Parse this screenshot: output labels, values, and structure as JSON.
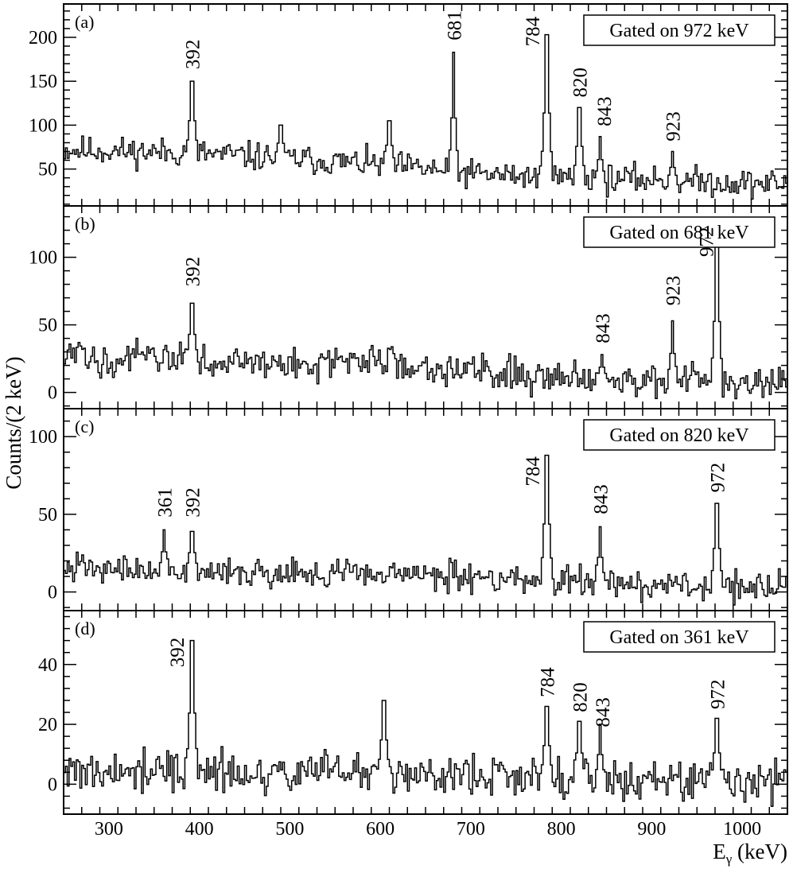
{
  "chart_data": {
    "type": "histogram",
    "ylabel": "Counts/(2 keV)",
    "xlabel": "E",
    "xlabel_sub": "γ",
    "xlabel_unit": " (keV)",
    "xlim": [
      250,
      1050
    ],
    "bin_width": 2,
    "xticks": [
      300,
      400,
      500,
      600,
      700,
      800,
      900,
      1000
    ],
    "xtick_labels": [
      "300",
      "400",
      "500",
      "600",
      "700",
      "800",
      "900",
      "1000"
    ],
    "panels": [
      {
        "tag": "(a)",
        "gate": "Gated on 972 keV",
        "ylim": [
          8,
          238
        ],
        "yticks": [
          50,
          100,
          150,
          200
        ],
        "ytick_labels": [
          "50",
          "100",
          "150",
          "200"
        ],
        "baseline": [
          [
            250,
            72
          ],
          [
            400,
            68
          ],
          [
            500,
            62
          ],
          [
            600,
            55
          ],
          [
            700,
            45
          ],
          [
            800,
            40
          ],
          [
            900,
            38
          ],
          [
            1000,
            34
          ],
          [
            1050,
            33
          ]
        ],
        "noise": 14,
        "peaks": [
          [
            392,
            150
          ],
          [
            490,
            100
          ],
          [
            610,
            105
          ],
          [
            681,
            183
          ],
          [
            784,
            203
          ],
          [
            820,
            120
          ],
          [
            843,
            87
          ],
          [
            923,
            70
          ]
        ],
        "labels": [
          {
            "text": "392",
            "x": 392,
            "y": 160
          },
          {
            "text": "681",
            "x": 681,
            "y": 193
          },
          {
            "text": "784",
            "x": 768,
            "y": 186
          },
          {
            "text": "820",
            "x": 820,
            "y": 128
          },
          {
            "text": "843",
            "x": 847,
            "y": 95
          },
          {
            "text": "923",
            "x": 923,
            "y": 78
          }
        ]
      },
      {
        "tag": "(b)",
        "gate": "Gated on 681 keV",
        "ylim": [
          -12,
          138
        ],
        "yticks": [
          0,
          50,
          100
        ],
        "ytick_labels": [
          "0",
          "50",
          "100"
        ],
        "baseline": [
          [
            250,
            26
          ],
          [
            400,
            24
          ],
          [
            500,
            20
          ],
          [
            600,
            24
          ],
          [
            700,
            16
          ],
          [
            800,
            12
          ],
          [
            900,
            10
          ],
          [
            1000,
            6
          ],
          [
            1050,
            6
          ]
        ],
        "noise": 11,
        "peaks": [
          [
            392,
            66
          ],
          [
            845,
            28
          ],
          [
            923,
            53
          ],
          [
            972,
            108
          ]
        ],
        "labels": [
          {
            "text": "392",
            "x": 392,
            "y": 76
          },
          {
            "text": "843",
            "x": 845,
            "y": 34
          },
          {
            "text": "923",
            "x": 923,
            "y": 62
          },
          {
            "text": "972",
            "x": 960,
            "y": 98
          }
        ]
      },
      {
        "tag": "(c)",
        "gate": "Gated on 820 keV",
        "ylim": [
          -12,
          118
        ],
        "yticks": [
          0,
          50,
          100
        ],
        "ytick_labels": [
          "0",
          "50",
          "100"
        ],
        "baseline": [
          [
            250,
            15
          ],
          [
            400,
            14
          ],
          [
            500,
            12
          ],
          [
            600,
            12
          ],
          [
            700,
            10
          ],
          [
            800,
            7
          ],
          [
            900,
            5
          ],
          [
            1000,
            4
          ],
          [
            1050,
            4
          ]
        ],
        "noise": 8,
        "peaks": [
          [
            361,
            40
          ],
          [
            392,
            39
          ],
          [
            784,
            88
          ],
          [
            843,
            42
          ],
          [
            972,
            57
          ]
        ],
        "labels": [
          {
            "text": "361",
            "x": 361,
            "y": 46
          },
          {
            "text": "392",
            "x": 392,
            "y": 46
          },
          {
            "text": "784",
            "x": 768,
            "y": 66
          },
          {
            "text": "843",
            "x": 843,
            "y": 48
          },
          {
            "text": "972",
            "x": 972,
            "y": 62
          }
        ]
      },
      {
        "tag": "(d)",
        "gate": "Gated on 361 keV",
        "ylim": [
          -10,
          58
        ],
        "yticks": [
          0,
          20,
          40
        ],
        "ytick_labels": [
          "0",
          "20",
          "40"
        ],
        "baseline": [
          [
            250,
            3
          ],
          [
            400,
            4
          ],
          [
            500,
            4
          ],
          [
            600,
            4
          ],
          [
            700,
            3
          ],
          [
            800,
            2
          ],
          [
            900,
            1
          ],
          [
            1000,
            1
          ],
          [
            1050,
            1
          ]
        ],
        "noise": 6,
        "peaks": [
          [
            392,
            48
          ],
          [
            604,
            28
          ],
          [
            784,
            26
          ],
          [
            820,
            21
          ],
          [
            843,
            20
          ],
          [
            972,
            22
          ]
        ],
        "labels": [
          {
            "text": "392",
            "x": 375,
            "y": 38
          },
          {
            "text": "784",
            "x": 784,
            "y": 28
          },
          {
            "text": "820",
            "x": 820,
            "y": 23
          },
          {
            "text": "843",
            "x": 845,
            "y": 18
          },
          {
            "text": "972",
            "x": 972,
            "y": 24
          }
        ]
      }
    ]
  }
}
